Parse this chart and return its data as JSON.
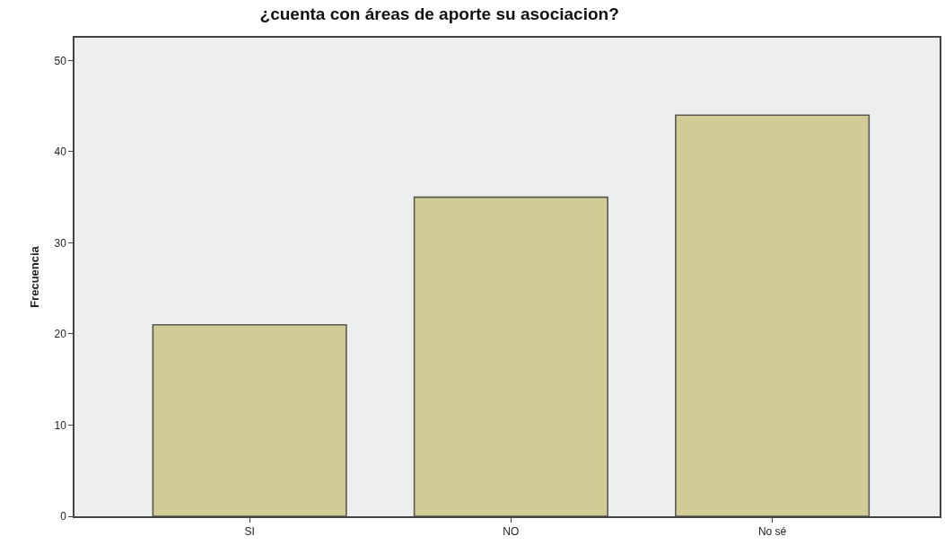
{
  "chart_data": {
    "type": "bar",
    "title": "¿cuenta con áreas de aporte su asociacion?",
    "ylabel": "Frecuencia",
    "categories": [
      "SI",
      "NO",
      "No sé"
    ],
    "values": [
      21,
      35,
      44
    ],
    "color": "#d1cc95",
    "ylim": [
      0,
      52.5
    ],
    "yticks": [
      0,
      10,
      20,
      30,
      40,
      50
    ],
    "grid": false
  }
}
